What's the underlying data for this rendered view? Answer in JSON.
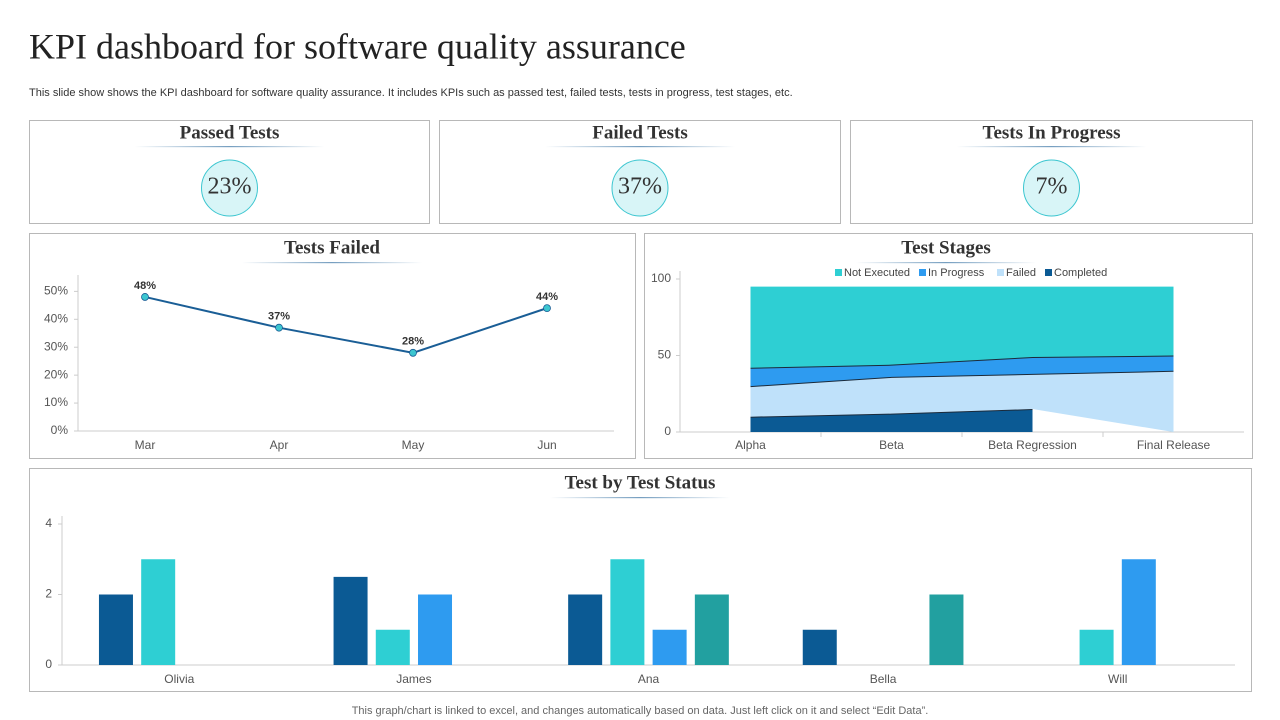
{
  "title": "KPI dashboard for software quality assurance",
  "subtitle": "This slide show shows the KPI dashboard for software quality assurance. It includes KPIs such as passed test, failed tests, tests in progress, test stages, etc.",
  "kpis": [
    {
      "title": "Passed Tests",
      "value": "23%"
    },
    {
      "title": "Failed Tests",
      "value": "37%"
    },
    {
      "title": "Tests In Progress",
      "value": "7%"
    }
  ],
  "chart_data": [
    {
      "type": "line",
      "title": "Tests Failed",
      "categories": [
        "Mar",
        "Apr",
        "May",
        "Jun"
      ],
      "values": [
        48,
        37,
        28,
        44
      ],
      "value_labels": [
        "48%",
        "37%",
        "28%",
        "44%"
      ],
      "color": "#1a5e96",
      "marker_color": "#3cc6d0",
      "ylim": [
        0,
        53
      ],
      "yticks": [
        {
          "value": 0,
          "label": "0%"
        },
        {
          "value": 10,
          "label": "10%"
        },
        {
          "value": 20,
          "label": "20%"
        },
        {
          "value": 30,
          "label": "30%"
        },
        {
          "value": 40,
          "label": "40%"
        },
        {
          "value": 50,
          "label": "50%"
        }
      ]
    },
    {
      "type": "stacked_area",
      "title": "Test Stages",
      "categories": [
        "Alpha",
        "Beta",
        "Beta Regression",
        "Final Release"
      ],
      "series": [
        {
          "name": "Completed",
          "color": "#0b5a94",
          "values": [
            10,
            12,
            15,
            null
          ]
        },
        {
          "name": "Failed",
          "color": "#bfe1fa",
          "values": [
            20,
            24,
            23,
            40
          ]
        },
        {
          "name": "In Progress",
          "color": "#2e9bf0",
          "values": [
            12,
            8,
            11,
            10
          ]
        },
        {
          "name": "Not Executed",
          "color": "#2ecfd3",
          "values": [
            53,
            51,
            46,
            45
          ]
        }
      ],
      "legend": "top",
      "ylim": [
        0,
        100
      ],
      "yticks": [
        0,
        50,
        100
      ]
    },
    {
      "type": "grouped_bar",
      "title": "Test by Test Status",
      "categories": [
        "Olivia",
        "James",
        "Ana",
        "Bella",
        "Will"
      ],
      "series": [
        {
          "color": "#0b5a94",
          "values": [
            2,
            2.5,
            2,
            1,
            0
          ]
        },
        {
          "color": "#2ecfd3",
          "values": [
            3,
            1,
            3,
            0,
            1
          ]
        },
        {
          "color": "#2e9bf0",
          "values": [
            0,
            2,
            1,
            0,
            3
          ]
        },
        {
          "color": "#22a0a0",
          "values": [
            0,
            0,
            2,
            2,
            0
          ]
        }
      ],
      "ylim": [
        0,
        4
      ],
      "yticks": [
        0,
        2,
        4
      ]
    }
  ],
  "footer": "This graph/chart is linked to excel, and changes automatically based on data. Just left click on it and select “Edit Data”."
}
